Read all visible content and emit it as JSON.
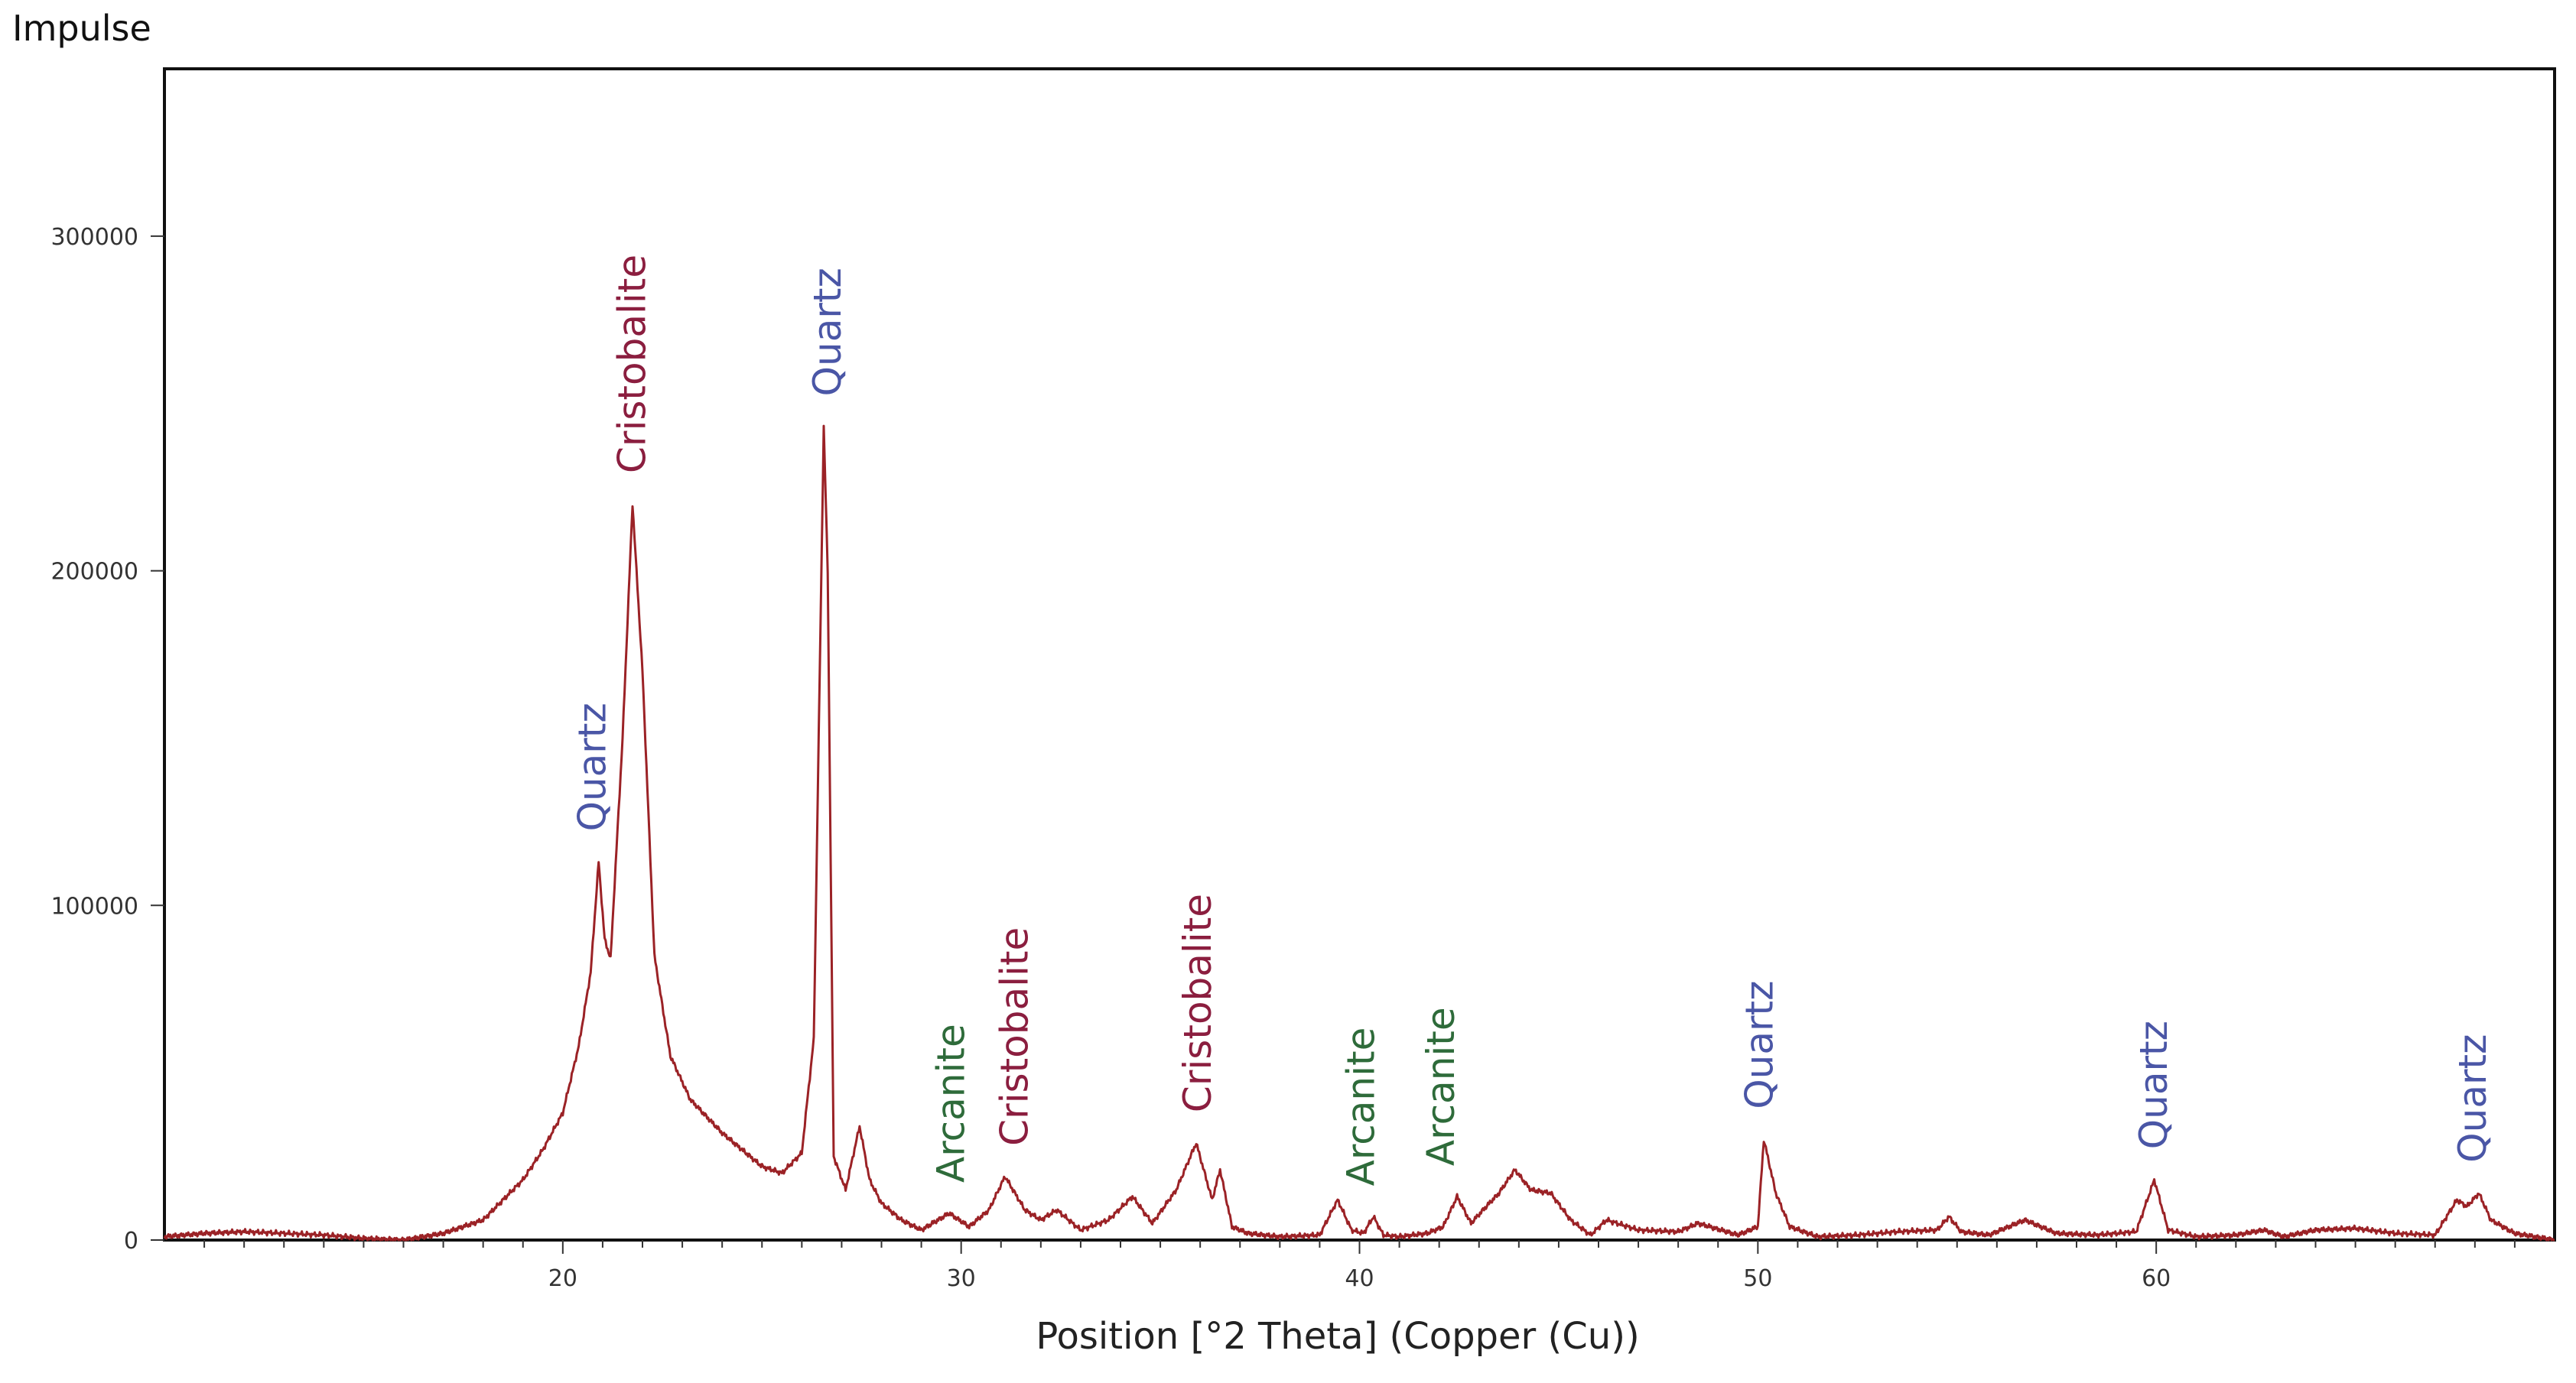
{
  "chart_data": {
    "type": "line",
    "title": "",
    "ylabel": "Impulse",
    "xlabel": "Position [°2 Theta] (Copper (Cu))",
    "xlim": [
      10,
      70
    ],
    "ylim": [
      0,
      350000
    ],
    "x_ticks": [
      20,
      30,
      40,
      50,
      60
    ],
    "y_ticks": [
      0,
      100000,
      200000,
      300000
    ],
    "y_tick_labels": [
      "0",
      "100000",
      "200000",
      "300000"
    ],
    "grid": false,
    "legend": "none",
    "line_color": "#9b2226",
    "series": [
      {
        "x": [
          10,
          11,
          12,
          13,
          14,
          15,
          16,
          17,
          18,
          19,
          19.5,
          20,
          20.4,
          20.7,
          20.9,
          21.05,
          21.2,
          21.5,
          21.75,
          22.0,
          22.3,
          22.7,
          23.2,
          24,
          25,
          25.5,
          26.0,
          26.3,
          26.55,
          26.65,
          26.8,
          27.1,
          27.45,
          27.7,
          28,
          28.5,
          29,
          29.7,
          30.2,
          30.7,
          31.1,
          31.6,
          32.0,
          32.4,
          33,
          33.7,
          34.3,
          34.8,
          35.4,
          35.9,
          36.3,
          36.5,
          36.8,
          37.2,
          38,
          39,
          39.45,
          39.8,
          40.1,
          40.35,
          40.6,
          41,
          41.7,
          42.1,
          42.45,
          42.8,
          43.1,
          43.5,
          43.9,
          44.3,
          44.8,
          45.3,
          45.8,
          46.2,
          47,
          48,
          48.5,
          49.5,
          50.0,
          50.15,
          50.45,
          50.8,
          51.5,
          52.5,
          53.5,
          54.5,
          54.8,
          55.1,
          55.8,
          56.7,
          57.5,
          58.5,
          59.5,
          59.95,
          60.3,
          61,
          62,
          62.7,
          63.2,
          64,
          65,
          66,
          67,
          67.55,
          67.8,
          68.1,
          68.4,
          69,
          70
        ],
        "values": [
          1000,
          2000,
          2500,
          2000,
          1500,
          500,
          0,
          2000,
          6000,
          18000,
          27000,
          38000,
          58000,
          80000,
          113000,
          90000,
          84000,
          150000,
          220000,
          170000,
          85000,
          55000,
          42000,
          32000,
          22000,
          20000,
          26000,
          60000,
          243000,
          200000,
          25000,
          15000,
          34000,
          18000,
          11000,
          6000,
          3000,
          8000,
          4000,
          9000,
          19000,
          9000,
          6000,
          9000,
          3000,
          6000,
          13000,
          5000,
          15000,
          29000,
          12000,
          21000,
          4000,
          2000,
          1000,
          1500,
          12000,
          3000,
          2000,
          7000,
          1500,
          1000,
          2000,
          4000,
          13000,
          5000,
          9000,
          14000,
          21000,
          15000,
          14000,
          6000,
          1500,
          6000,
          3000,
          2500,
          5000,
          1500,
          4000,
          30000,
          14000,
          4000,
          1000,
          1500,
          2500,
          3000,
          7000,
          2500,
          1500,
          6000,
          2000,
          1500,
          2500,
          18000,
          3000,
          1000,
          1500,
          3000,
          1000,
          3000,
          3500,
          2000,
          1500,
          12000,
          10000,
          14000,
          6000,
          2000,
          0
        ]
      }
    ],
    "annotations": [
      {
        "text": "Quartz",
        "x": 20.8,
        "color": "#4a56a6"
      },
      {
        "text": "Cristobalite",
        "x": 21.8,
        "color": "#8b1e3f"
      },
      {
        "text": "Quartz",
        "x": 26.7,
        "color": "#4a56a6"
      },
      {
        "text": "Arcanite",
        "x": 29.8,
        "color": "#2e6b3a"
      },
      {
        "text": "Cristobalite",
        "x": 31.4,
        "color": "#8b1e3f"
      },
      {
        "text": "Cristobalite",
        "x": 36.0,
        "color": "#8b1e3f"
      },
      {
        "text": "Arcanite",
        "x": 40.1,
        "color": "#2e6b3a"
      },
      {
        "text": "Arcanite",
        "x": 42.1,
        "color": "#2e6b3a"
      },
      {
        "text": "Quartz",
        "x": 50.1,
        "color": "#4a56a6"
      },
      {
        "text": "Quartz",
        "x": 60.0,
        "color": "#4a56a6"
      },
      {
        "text": "Quartz",
        "x": 68.0,
        "color": "#4a56a6"
      }
    ]
  }
}
